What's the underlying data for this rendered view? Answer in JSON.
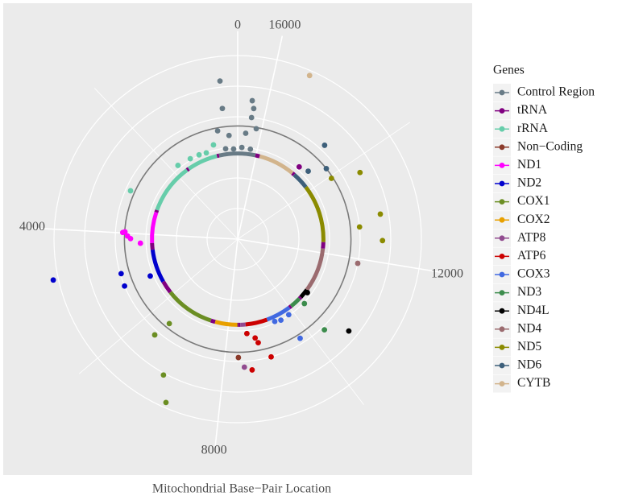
{
  "chart_data": {
    "type": "polar",
    "x_label": "Mitochondrial Base−Pair Location",
    "legend_title": "Genes",
    "legend_position": "right",
    "xlim": [
      0,
      16569
    ],
    "xticks": [
      0,
      4000,
      8000,
      12000,
      16000
    ],
    "xminor": [
      2000,
      6000,
      10000,
      14000
    ],
    "rlim": [
      0,
      6.8
    ],
    "rticks": [
      1,
      2,
      3,
      4,
      5,
      6
    ],
    "ring_radius": 2.8,
    "reference_radius": 3.7,
    "grid": true,
    "series": [
      {
        "name": "Control Region",
        "color": "#687b86",
        "x": [
          294,
          308,
          16293,
          16247,
          16270,
          16130,
          16370,
          220,
          483,
          120,
          16450,
          16200,
          350
        ],
        "values": [
          5.2,
          4.3,
          4.55,
          4.3,
          4.0,
          3.66,
          3.47,
          3.4,
          3.6,
          2.95,
          3.0,
          2.97,
          2.98
        ]
      },
      {
        "name": "tRNA",
        "color": "#800080",
        "x": [
          14710
        ],
        "values": [
          3.1
        ]
      },
      {
        "name": "rRNA",
        "color": "#66cdaa",
        "x": [
          1404,
          1132,
          920,
          663,
          1795,
          3024
        ],
        "values": [
          3.05,
          3.03,
          3.0,
          3.18,
          3.1,
          3.84
        ]
      },
      {
        "name": "Non−Coding",
        "color": "#8b3a2a",
        "x": [
          8300
        ],
        "values": [
          3.87
        ]
      },
      {
        "name": "ND1",
        "color": "#ff00ff",
        "x": [
          3972,
          4066,
          4130,
          4253,
          3990
        ],
        "values": [
          3.69,
          3.6,
          3.5,
          3.18,
          3.76
        ]
      },
      {
        "name": "ND2",
        "color": "#0000cd",
        "x": [
          4718,
          4902,
          5179,
          5196
        ],
        "values": [
          6.17,
          3.97,
          4.0,
          3.1
        ]
      },
      {
        "name": "COX1",
        "color": "#6b8e23",
        "x": [
          6490,
          6403,
          6967,
          7194
        ],
        "values": [
          3.55,
          4.14,
          5.06,
          5.83
        ]
      },
      {
        "name": "COX2",
        "color": "#e8a000",
        "x": [],
        "values": []
      },
      {
        "name": "ATP8",
        "color": "#914b8f",
        "x": [
          8422
        ],
        "values": [
          4.19
        ]
      },
      {
        "name": "ATP6",
        "color": "#cc0000",
        "x": [
          8745,
          8800,
          8540,
          9014,
          8574
        ],
        "values": [
          3.28,
          3.45,
          3.1,
          4.0,
          4.3
        ]
      },
      {
        "name": "COX3",
        "color": "#4169e1",
        "x": [
          9765,
          9575,
          9850,
          9400
        ],
        "values": [
          3.83,
          3.0,
          2.98,
          2.95
        ]
      },
      {
        "name": "ND3",
        "color": "#3c8c4c",
        "x": [
          10296,
          10400
        ],
        "values": [
          4.1,
          3.03
        ]
      },
      {
        "name": "ND4L",
        "color": "#000000",
        "x": [
          10604,
          10700
        ],
        "values": [
          4.71,
          2.87
        ]
      },
      {
        "name": "ND4",
        "color": "#9b6b6f",
        "x": [
          11902
        ],
        "values": [
          4.0
        ]
      },
      {
        "name": "ND5",
        "color": "#8b8b00",
        "x": [
          13743,
          13945,
          12885,
          12690,
          12400
        ],
        "values": [
          4.55,
          3.65,
          4.73,
          4.0,
          4.73
        ]
      },
      {
        "name": "ND6",
        "color": "#3d5f7a",
        "x": [
          14600,
          14450,
          14200
        ],
        "values": [
          4.18,
          3.2,
          3.7
        ]
      },
      {
        "name": "CYTB",
        "color": "#d2b48c",
        "x": [
          15478
        ],
        "values": [
          5.84
        ]
      }
    ],
    "ring": [
      {
        "gene": "Control Region",
        "start": 16024,
        "end": 16569
      },
      {
        "gene": "Control Region",
        "start": 0,
        "end": 576
      },
      {
        "gene": "tRNA",
        "start": 577,
        "end": 647
      },
      {
        "gene": "rRNA",
        "start": 648,
        "end": 1601
      },
      {
        "gene": "tRNA",
        "start": 1602,
        "end": 1670
      },
      {
        "gene": "rRNA",
        "start": 1671,
        "end": 3229
      },
      {
        "gene": "tRNA",
        "start": 3230,
        "end": 3306
      },
      {
        "gene": "ND1",
        "start": 3307,
        "end": 4262
      },
      {
        "gene": "tRNA",
        "start": 4263,
        "end": 4469
      },
      {
        "gene": "ND2",
        "start": 4470,
        "end": 5511
      },
      {
        "gene": "tRNA",
        "start": 5512,
        "end": 5903
      },
      {
        "gene": "COX1",
        "start": 5904,
        "end": 7445
      },
      {
        "gene": "tRNA",
        "start": 7446,
        "end": 7585
      },
      {
        "gene": "COX2",
        "start": 7586,
        "end": 8269
      },
      {
        "gene": "Non−Coding",
        "start": 8270,
        "end": 8294
      },
      {
        "gene": "tRNA",
        "start": 8295,
        "end": 8365
      },
      {
        "gene": "ATP8",
        "start": 8366,
        "end": 8526
      },
      {
        "gene": "ATP6",
        "start": 8527,
        "end": 9206
      },
      {
        "gene": "COX3",
        "start": 9207,
        "end": 9990
      },
      {
        "gene": "tRNA",
        "start": 9991,
        "end": 10058
      },
      {
        "gene": "ND3",
        "start": 10059,
        "end": 10404
      },
      {
        "gene": "tRNA",
        "start": 10405,
        "end": 10469
      },
      {
        "gene": "ND4L",
        "start": 10470,
        "end": 10759
      },
      {
        "gene": "ND4",
        "start": 10760,
        "end": 12137
      },
      {
        "gene": "tRNA",
        "start": 12138,
        "end": 12336
      },
      {
        "gene": "ND5",
        "start": 12337,
        "end": 14148
      },
      {
        "gene": "ND6",
        "start": 14149,
        "end": 14673
      },
      {
        "gene": "tRNA",
        "start": 14674,
        "end": 14746
      },
      {
        "gene": "CYTB",
        "start": 14747,
        "end": 15887
      },
      {
        "gene": "tRNA",
        "start": 15888,
        "end": 16023
      }
    ]
  }
}
